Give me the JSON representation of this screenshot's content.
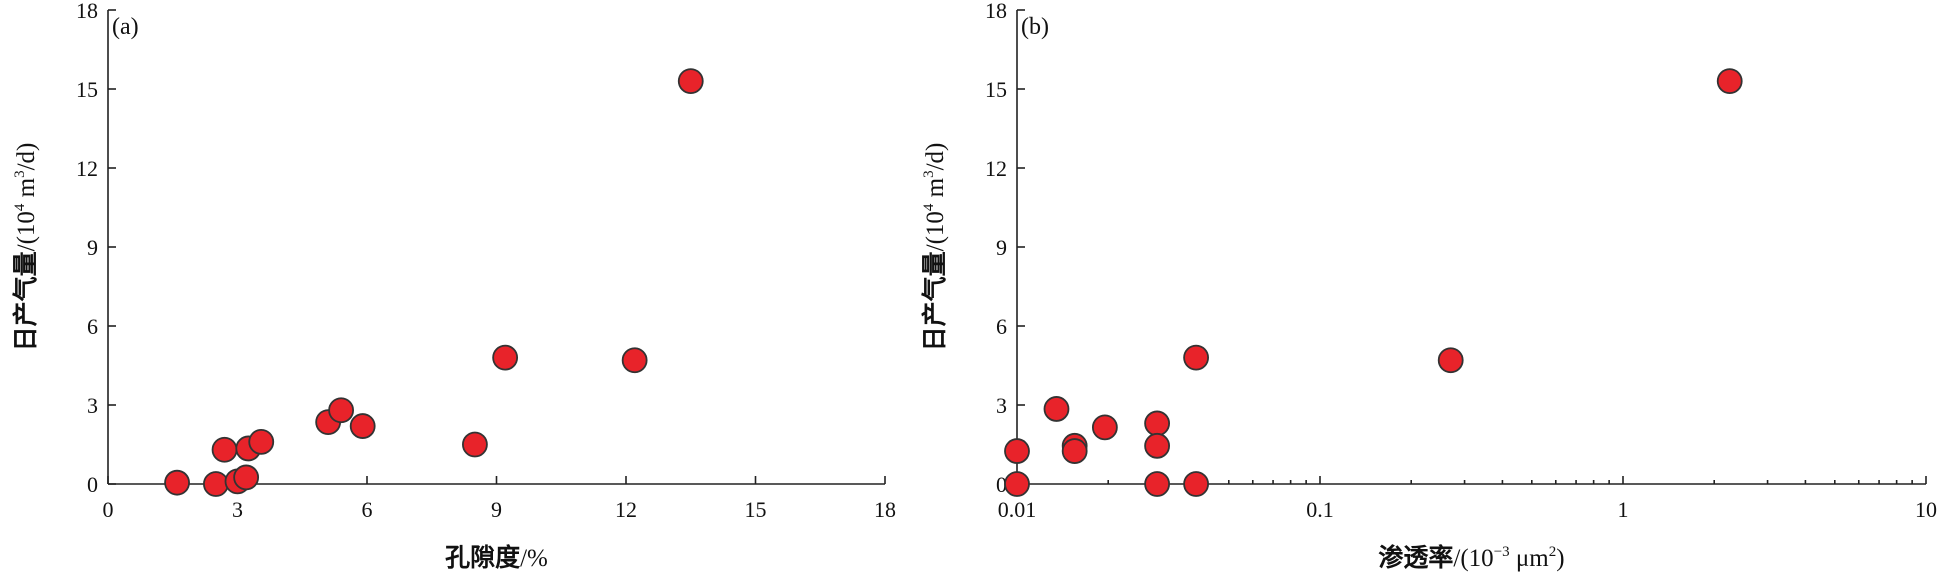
{
  "chart_data": [
    {
      "type": "scatter",
      "panel_label": "(a)",
      "x_title_main": "孔隙度",
      "x_title_unit": "/%",
      "y_title_main": "日产气量",
      "y_title_unit": "/(10",
      "y_title_sup": "4",
      "y_title_unit2": " m",
      "y_title_sup2": "3",
      "y_title_unit3": "/d)",
      "xlim": [
        0,
        18
      ],
      "ylim": [
        0,
        18
      ],
      "xscale": "linear",
      "xticks": [
        0,
        3,
        6,
        9,
        12,
        15,
        18
      ],
      "xtick_labels": [
        "0",
        "3",
        "6",
        "9",
        "12",
        "15",
        "18"
      ],
      "yticks": [
        0,
        3,
        6,
        9,
        12,
        15,
        18
      ],
      "ytick_labels": [
        "0",
        "3",
        "6",
        "9",
        "12",
        "15",
        "18"
      ],
      "points": [
        {
          "x": 1.6,
          "y": 0.05
        },
        {
          "x": 2.5,
          "y": 0.0
        },
        {
          "x": 2.7,
          "y": 1.3
        },
        {
          "x": 3.0,
          "y": 0.1
        },
        {
          "x": 3.2,
          "y": 0.25
        },
        {
          "x": 3.25,
          "y": 1.35
        },
        {
          "x": 3.55,
          "y": 1.6
        },
        {
          "x": 5.1,
          "y": 2.35
        },
        {
          "x": 5.4,
          "y": 2.8
        },
        {
          "x": 5.9,
          "y": 2.2
        },
        {
          "x": 8.5,
          "y": 1.5
        },
        {
          "x": 9.2,
          "y": 4.8
        },
        {
          "x": 12.2,
          "y": 4.7
        },
        {
          "x": 13.5,
          "y": 15.3
        }
      ],
      "marker_color": "#e8232a",
      "grid": false
    },
    {
      "type": "scatter",
      "panel_label": "(b)",
      "x_title_main": "渗透率",
      "x_title_unit": "/(10",
      "x_title_sup": "−3",
      "x_title_unit2": " μm",
      "x_title_sup2": "2",
      "x_title_unit3": ")",
      "y_title_main": "日产气量",
      "y_title_unit": "/(10",
      "y_title_sup": "4",
      "y_title_unit2": " m",
      "y_title_sup2": "3",
      "y_title_unit3": "/d)",
      "xlim": [
        0.01,
        10
      ],
      "ylim": [
        0,
        18
      ],
      "xscale": "log",
      "xticks": [
        0.01,
        0.1,
        1,
        10
      ],
      "xtick_labels": [
        "0.01",
        "0.1",
        "1",
        "10"
      ],
      "yticks": [
        0,
        3,
        6,
        9,
        12,
        15,
        18
      ],
      "ytick_labels": [
        "0",
        "3",
        "6",
        "9",
        "12",
        "15",
        "18"
      ],
      "points": [
        {
          "x": 0.01,
          "y": 1.25
        },
        {
          "x": 0.01,
          "y": 0.0
        },
        {
          "x": 0.0135,
          "y": 2.85
        },
        {
          "x": 0.0155,
          "y": 1.45
        },
        {
          "x": 0.0155,
          "y": 1.25
        },
        {
          "x": 0.0195,
          "y": 2.15
        },
        {
          "x": 0.029,
          "y": 2.3
        },
        {
          "x": 0.029,
          "y": 1.45
        },
        {
          "x": 0.029,
          "y": 0.0
        },
        {
          "x": 0.039,
          "y": 4.8
        },
        {
          "x": 0.039,
          "y": 0.0
        },
        {
          "x": 0.27,
          "y": 4.7
        },
        {
          "x": 2.25,
          "y": 15.3
        }
      ],
      "marker_color": "#e8232a",
      "grid": false
    }
  ]
}
